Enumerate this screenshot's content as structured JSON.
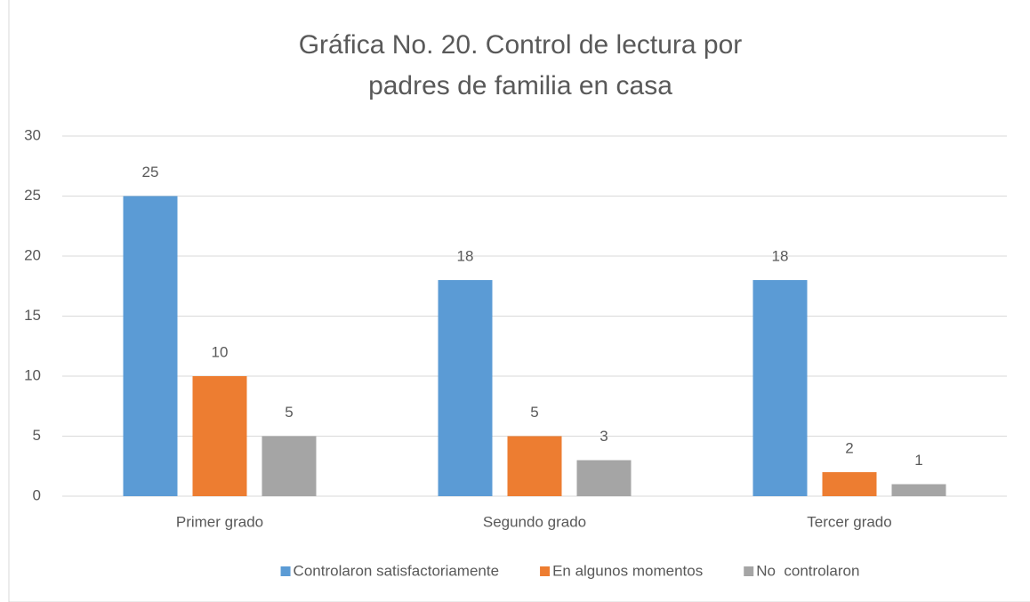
{
  "chart_data": {
    "type": "bar",
    "title": "Gráfica No. 20. Control de lectura por padres de familia en casa",
    "categories": [
      "Primer grado",
      "Segundo grado",
      "Tercer grado"
    ],
    "series": [
      {
        "name": "Controlaron satisfactoriamente",
        "color": "#5b9bd5",
        "values": [
          25,
          18,
          18
        ]
      },
      {
        "name": "En algunos momentos",
        "color": "#ed7d31",
        "values": [
          10,
          5,
          2
        ]
      },
      {
        "name": "No  controlaron",
        "color": "#a5a5a5",
        "values": [
          5,
          3,
          1
        ]
      }
    ],
    "ylim": [
      0,
      30
    ],
    "yticks": [
      0,
      5,
      10,
      15,
      20,
      25,
      30
    ],
    "grid": true,
    "legend": "bottom"
  }
}
